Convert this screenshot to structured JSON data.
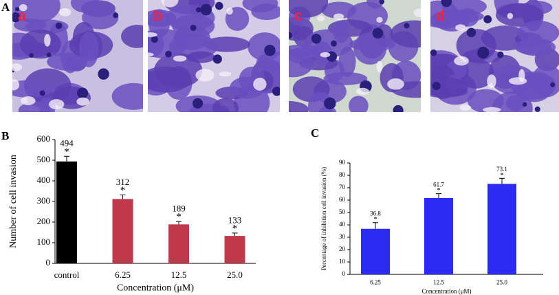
{
  "figure": {
    "panel_labels": [
      "A",
      "B",
      "C"
    ],
    "image_labels": [
      "a",
      "b",
      "c",
      "d"
    ]
  },
  "chart_data": [
    {
      "type": "bar",
      "categories": [
        "control",
        "6.25",
        "12.5",
        "25.0"
      ],
      "values": [
        494,
        312,
        189,
        133
      ],
      "errors": [
        25,
        20,
        14,
        14
      ],
      "markers": [
        "*",
        "*",
        "*",
        "*"
      ],
      "colors": [
        "#000000",
        "#c0394b",
        "#c0394b",
        "#c0394b"
      ],
      "x_label": "Concentration (μM)",
      "y_label": "Number of cell invasion",
      "ylim": [
        0,
        600
      ],
      "yticks": [
        0,
        100,
        200,
        300,
        400,
        500,
        600
      ],
      "grid": false
    },
    {
      "type": "bar",
      "categories": [
        "6.25",
        "12.5",
        "25.0"
      ],
      "values": [
        36.8,
        61.7,
        73.1
      ],
      "errors": [
        5,
        3.5,
        4.5
      ],
      "markers": [
        "*",
        "*",
        "*"
      ],
      "colors": [
        "#2b2bf2",
        "#2b2bf2",
        "#2b2bf2"
      ],
      "x_label": "Concentration (μM)",
      "y_label": "Percentage of inhibition cell invasion (%)",
      "ylim": [
        0,
        90
      ],
      "yticks": [
        0,
        10,
        20,
        30,
        40,
        50,
        60,
        70,
        80,
        90
      ],
      "grid": false
    }
  ]
}
